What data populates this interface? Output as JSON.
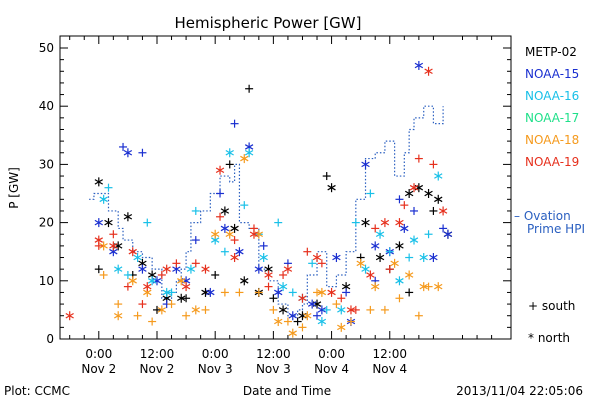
{
  "chart_data": {
    "type": "scatter",
    "title": "Hemispheric Power [GW]",
    "xlabel": "Date and Time",
    "ylabel": "P [GW]",
    "xlim_hours": [
      -8,
      85
    ],
    "ylim": [
      0,
      52
    ],
    "grid": false,
    "y_ticks": [
      0,
      10,
      20,
      30,
      40,
      50
    ],
    "x_ticks": [
      {
        "h": 0,
        "line1": "0:00",
        "line2": "Nov 2"
      },
      {
        "h": 12,
        "line1": "12:00",
        "line2": "Nov 2"
      },
      {
        "h": 24,
        "line1": "0:00",
        "line2": "Nov 3"
      },
      {
        "h": 36,
        "line1": "12:00",
        "line2": "Nov 3"
      },
      {
        "h": 48,
        "line1": "0:00",
        "line2": "Nov 4"
      },
      {
        "h": 60,
        "line1": "12:00",
        "line2": "Nov 4"
      }
    ],
    "legend": [
      "METP-02",
      "NOAA-15",
      "NOAA-16",
      "NOAA-17",
      "NOAA-18",
      "NOAA-19"
    ],
    "ovation_label": [
      "– Ovation",
      "Prime HPI"
    ],
    "marker_key": {
      "south": "+ south",
      "north": "* north"
    },
    "colors": {
      "METP-02": "#000000",
      "NOAA-15": "#1a2fd0",
      "NOAA-16": "#19c0e8",
      "NOAA-17": "#1fe08a",
      "NOAA-18": "#f59a1d",
      "NOAA-19": "#e6301d",
      "ovation": "#2a5fc0"
    },
    "ovation": [
      [
        -2,
        24
      ],
      [
        -1,
        25
      ],
      [
        0,
        25
      ],
      [
        1,
        25
      ],
      [
        2,
        22
      ],
      [
        3,
        22
      ],
      [
        4,
        19
      ],
      [
        5,
        17
      ],
      [
        6,
        17
      ],
      [
        7,
        15
      ],
      [
        8,
        15
      ],
      [
        9,
        14
      ],
      [
        10,
        14
      ],
      [
        11,
        12
      ],
      [
        12,
        12
      ],
      [
        13,
        7
      ],
      [
        14,
        7
      ],
      [
        15,
        8
      ],
      [
        16,
        10
      ],
      [
        17,
        12
      ],
      [
        18,
        15
      ],
      [
        19,
        20
      ],
      [
        20,
        20
      ],
      [
        21,
        22
      ],
      [
        22,
        22
      ],
      [
        23,
        25
      ],
      [
        24,
        25
      ],
      [
        25,
        28
      ],
      [
        26,
        28
      ],
      [
        27,
        27
      ],
      [
        28,
        30
      ],
      [
        29,
        20
      ],
      [
        30,
        20
      ],
      [
        31,
        19
      ],
      [
        32,
        19
      ],
      [
        33,
        12
      ],
      [
        34,
        12
      ],
      [
        35,
        10
      ],
      [
        36,
        10
      ],
      [
        37,
        6
      ],
      [
        38,
        6
      ],
      [
        39,
        4
      ],
      [
        40,
        4
      ],
      [
        41,
        5
      ],
      [
        42,
        6
      ],
      [
        43,
        11
      ],
      [
        44,
        11
      ],
      [
        45,
        15
      ],
      [
        46,
        15
      ],
      [
        47,
        9
      ],
      [
        48,
        9
      ],
      [
        49,
        11
      ],
      [
        50,
        11
      ],
      [
        51,
        15
      ],
      [
        52,
        15
      ],
      [
        53,
        24
      ],
      [
        54,
        24
      ],
      [
        55,
        31
      ],
      [
        56,
        31
      ],
      [
        57,
        32
      ],
      [
        58,
        32
      ],
      [
        59,
        34
      ],
      [
        60,
        34
      ],
      [
        61,
        28
      ],
      [
        62,
        28
      ],
      [
        63,
        32
      ],
      [
        64,
        36
      ],
      [
        65,
        38
      ],
      [
        66,
        38
      ],
      [
        67,
        40
      ],
      [
        68,
        40
      ],
      [
        69,
        37
      ],
      [
        70,
        37
      ],
      [
        71,
        40
      ]
    ],
    "series": [
      {
        "name": "METP-02",
        "south": [
          [
            0,
            12
          ],
          [
            7,
            11
          ],
          [
            12,
            5
          ],
          [
            18,
            7
          ],
          [
            24,
            11
          ],
          [
            27,
            30
          ],
          [
            31,
            43
          ],
          [
            36,
            7
          ],
          [
            41,
            3
          ],
          [
            47,
            28
          ],
          [
            54,
            14
          ],
          [
            60,
            12
          ],
          [
            64,
            8
          ],
          [
            69,
            22
          ]
        ],
        "north": [
          [
            0,
            27
          ],
          [
            2,
            20
          ],
          [
            4,
            16
          ],
          [
            6,
            21
          ],
          [
            9,
            13
          ],
          [
            11,
            11
          ],
          [
            14,
            7
          ],
          [
            17,
            7
          ],
          [
            22,
            8
          ],
          [
            26,
            22
          ],
          [
            28,
            19
          ],
          [
            30,
            10
          ],
          [
            33,
            8
          ],
          [
            35,
            12
          ],
          [
            38,
            5
          ],
          [
            42,
            4
          ],
          [
            45,
            6
          ],
          [
            48,
            26
          ],
          [
            51,
            9
          ],
          [
            55,
            20
          ],
          [
            58,
            14
          ],
          [
            62,
            16
          ],
          [
            64,
            25
          ],
          [
            66,
            26
          ],
          [
            68,
            25
          ],
          [
            70,
            24
          ],
          [
            72,
            18
          ]
        ]
      },
      {
        "name": "NOAA-15",
        "south": [
          [
            5,
            33
          ],
          [
            9,
            32
          ],
          [
            14,
            6
          ],
          [
            20,
            17
          ],
          [
            25,
            25
          ],
          [
            28,
            37
          ],
          [
            34,
            16
          ],
          [
            39,
            13
          ],
          [
            45,
            4
          ],
          [
            51,
            8
          ],
          [
            57,
            10
          ],
          [
            62,
            24
          ],
          [
            65,
            22
          ],
          [
            71,
            19
          ]
        ],
        "north": [
          [
            0,
            20
          ],
          [
            3,
            15
          ],
          [
            6,
            32
          ],
          [
            9,
            12
          ],
          [
            12,
            10
          ],
          [
            16,
            12
          ],
          [
            18,
            10
          ],
          [
            23,
            8
          ],
          [
            26,
            19
          ],
          [
            29,
            15
          ],
          [
            31,
            33
          ],
          [
            33,
            12
          ],
          [
            37,
            8
          ],
          [
            40,
            4
          ],
          [
            44,
            6
          ],
          [
            46,
            5
          ],
          [
            49,
            14
          ],
          [
            52,
            3
          ],
          [
            55,
            30
          ],
          [
            57,
            16
          ],
          [
            60,
            15
          ],
          [
            63,
            19
          ],
          [
            66,
            47
          ],
          [
            69,
            14
          ],
          [
            72,
            18
          ]
        ]
      },
      {
        "name": "NOAA-16",
        "south": [
          [
            2,
            26
          ],
          [
            6,
            11
          ],
          [
            10,
            20
          ],
          [
            15,
            8
          ],
          [
            20,
            22
          ],
          [
            26,
            15
          ],
          [
            30,
            23
          ],
          [
            33,
            18
          ],
          [
            37,
            20
          ],
          [
            40,
            8
          ],
          [
            44,
            13
          ],
          [
            47,
            5
          ],
          [
            53,
            20
          ],
          [
            56,
            25
          ],
          [
            60,
            15
          ],
          [
            64,
            14
          ],
          [
            68,
            18
          ]
        ],
        "north": [
          [
            1,
            24
          ],
          [
            4,
            12
          ],
          [
            8,
            14
          ],
          [
            11,
            10
          ],
          [
            14,
            8
          ],
          [
            19,
            12
          ],
          [
            24,
            17
          ],
          [
            27,
            32
          ],
          [
            31,
            32
          ],
          [
            34,
            14
          ],
          [
            38,
            9
          ],
          [
            42,
            7
          ],
          [
            46,
            3
          ],
          [
            50,
            5
          ],
          [
            55,
            12
          ],
          [
            58,
            18
          ],
          [
            62,
            10
          ],
          [
            65,
            17
          ],
          [
            67,
            14
          ],
          [
            70,
            28
          ]
        ]
      },
      {
        "name": "NOAA-17",
        "south": [],
        "north": []
      },
      {
        "name": "NOAA-18",
        "south": [
          [
            1,
            11
          ],
          [
            4,
            6
          ],
          [
            8,
            4
          ],
          [
            11,
            3
          ],
          [
            15,
            6
          ],
          [
            18,
            4
          ],
          [
            22,
            5
          ],
          [
            26,
            8
          ],
          [
            29,
            8
          ],
          [
            33,
            8
          ],
          [
            36,
            5
          ],
          [
            39,
            3
          ],
          [
            42,
            2
          ],
          [
            45,
            8
          ],
          [
            49,
            6
          ],
          [
            52,
            3
          ],
          [
            56,
            5
          ],
          [
            59,
            5
          ],
          [
            62,
            7
          ],
          [
            66,
            4
          ],
          [
            68,
            9
          ]
        ],
        "north": [
          [
            1,
            16
          ],
          [
            4,
            4
          ],
          [
            7,
            10
          ],
          [
            10,
            8
          ],
          [
            13,
            5
          ],
          [
            17,
            10
          ],
          [
            20,
            5
          ],
          [
            24,
            18
          ],
          [
            27,
            18
          ],
          [
            30,
            31
          ],
          [
            33,
            18
          ],
          [
            37,
            3
          ],
          [
            40,
            1
          ],
          [
            43,
            4
          ],
          [
            46,
            8
          ],
          [
            50,
            2
          ],
          [
            54,
            13
          ],
          [
            57,
            9
          ],
          [
            61,
            13
          ],
          [
            64,
            11
          ],
          [
            67,
            9
          ],
          [
            70,
            9
          ]
        ]
      },
      {
        "name": "NOAA-19",
        "south": [
          [
            0,
            16
          ],
          [
            3,
            18
          ],
          [
            6,
            9
          ],
          [
            9,
            6
          ],
          [
            13,
            11
          ],
          [
            16,
            13
          ],
          [
            20,
            13
          ],
          [
            25,
            21
          ],
          [
            28,
            17
          ],
          [
            32,
            19
          ],
          [
            35,
            9
          ],
          [
            38,
            11
          ],
          [
            43,
            15
          ],
          [
            46,
            13
          ],
          [
            50,
            7
          ],
          [
            53,
            5
          ],
          [
            57,
            19
          ],
          [
            60,
            12
          ],
          [
            63,
            23
          ],
          [
            66,
            31
          ],
          [
            69,
            30
          ]
        ],
        "north": [
          [
            -6,
            4
          ],
          [
            0,
            17
          ],
          [
            3,
            16
          ],
          [
            7,
            15
          ],
          [
            10,
            9
          ],
          [
            14,
            12
          ],
          [
            18,
            9
          ],
          [
            22,
            12
          ],
          [
            25,
            29
          ],
          [
            28,
            14
          ],
          [
            32,
            18
          ],
          [
            35,
            11
          ],
          [
            39,
            12
          ],
          [
            42,
            7
          ],
          [
            45,
            14
          ],
          [
            48,
            8
          ],
          [
            52,
            5
          ],
          [
            56,
            11
          ],
          [
            59,
            20
          ],
          [
            62,
            20
          ],
          [
            65,
            26
          ],
          [
            68,
            46
          ],
          [
            71,
            22
          ]
        ]
      }
    ]
  },
  "footer": {
    "plot_credit": "Plot: CCMC",
    "timestamp": "2013/11/04 22:05:06"
  }
}
